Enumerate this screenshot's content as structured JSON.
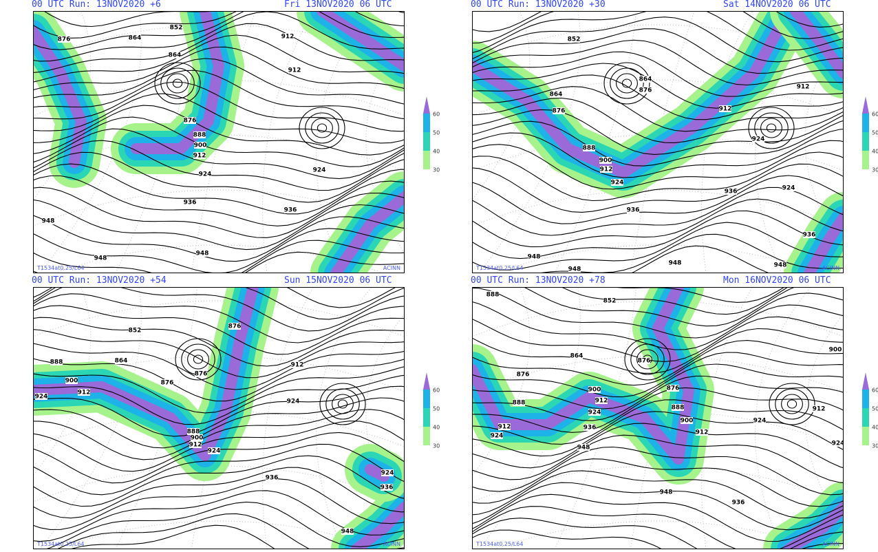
{
  "panels": [
    {
      "run": "00 UTC Run: 13NOV2020 +6",
      "valid": "Fri 13NOV2020 06 UTC",
      "contour_labels": [
        "852",
        "864",
        "876",
        "864",
        "912",
        "912",
        "876",
        "888",
        "900",
        "912",
        "924",
        "936",
        "924",
        "936",
        "948",
        "948",
        "948"
      ],
      "legend": [
        60,
        50,
        40,
        30
      ],
      "model": "T1534at0.25/L64",
      "source": "ACINN"
    },
    {
      "run": "00 UTC Run: 13NOV2020 +30",
      "valid": "Sat 14NOV2020 06 UTC",
      "contour_labels": [
        "852",
        "864",
        "876",
        "864",
        "876",
        "912",
        "912",
        "888",
        "900",
        "912",
        "924",
        "924",
        "924",
        "936",
        "936",
        "936",
        "948",
        "948",
        "948",
        "948"
      ],
      "legend": [
        60,
        50,
        40,
        30
      ],
      "model": "T1534at0.25/L64",
      "source": "ACINN"
    },
    {
      "run": "00 UTC Run: 13NOV2020 +54",
      "valid": "Sun 15NOV2020 06 UTC",
      "contour_labels": [
        "852",
        "864",
        "876",
        "876",
        "876",
        "888",
        "900",
        "912",
        "924",
        "888",
        "900",
        "912",
        "924",
        "912",
        "924",
        "936",
        "936",
        "924",
        "948"
      ],
      "legend": [
        60,
        50,
        40,
        30
      ],
      "model": "T1534at0.25/L64",
      "source": "ACINN"
    },
    {
      "run": "00 UTC Run: 13NOV2020 +78",
      "valid": "Mon 16NOV2020 06 UTC",
      "contour_labels": [
        "888",
        "852",
        "864",
        "876",
        "876",
        "876",
        "888",
        "912",
        "924",
        "900",
        "912",
        "924",
        "936",
        "948",
        "888",
        "900",
        "912",
        "924",
        "912",
        "900",
        "924",
        "948",
        "936"
      ],
      "legend": [
        60,
        50,
        40,
        30
      ],
      "model": "T1534at0.25/L64",
      "source": "ACINN"
    }
  ]
}
